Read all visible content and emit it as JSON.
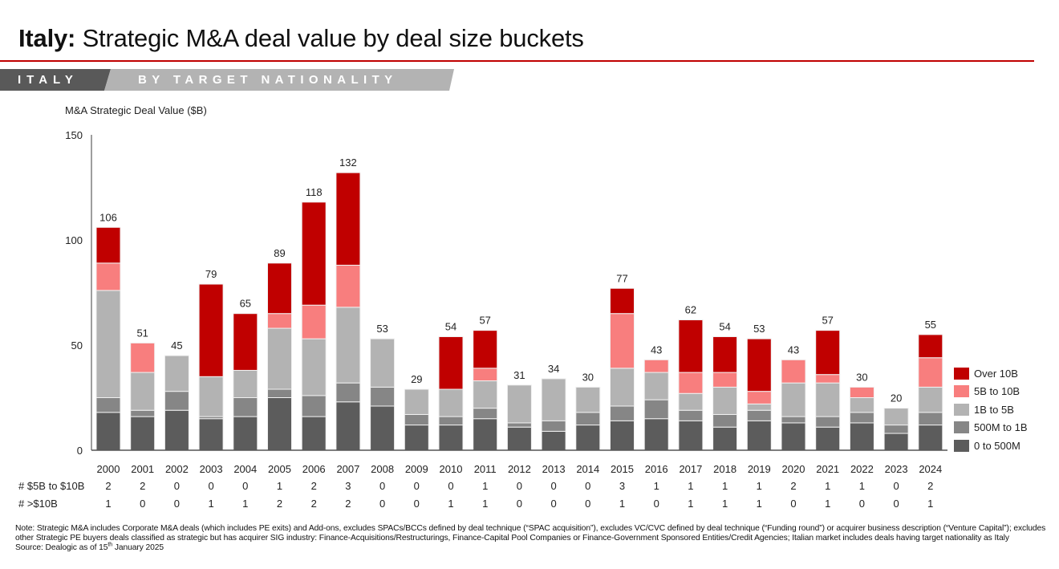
{
  "header": {
    "title_bold": "Italy:",
    "title_rest": " Strategic M&A deal value by deal size buckets",
    "banner_left": "ITALY",
    "banner_right": "BY TARGET NATIONALITY"
  },
  "colors": {
    "rule": "#c00000",
    "over_10b": "#c00000",
    "5b_to_10b": "#f87e7e",
    "1b_to_5b": "#b3b3b3",
    "500m_to_1b": "#868686",
    "0_to_500m": "#5c5c5c"
  },
  "chart_data": {
    "type": "bar",
    "stacked": true,
    "title": "Italy: Strategic M&A deal value by deal size buckets",
    "ylabel": "M&A Strategic Deal Value ($B)",
    "xlabel": "",
    "ylim": [
      0,
      150
    ],
    "yticks": [
      0,
      50,
      100,
      150
    ],
    "grid": false,
    "legend_position": "right",
    "categories": [
      "2000",
      "2001",
      "2002",
      "2003",
      "2004",
      "2005",
      "2006",
      "2007",
      "2008",
      "2009",
      "2010",
      "2011",
      "2012",
      "2013",
      "2014",
      "2015",
      "2016",
      "2017",
      "2018",
      "2019",
      "2020",
      "2021",
      "2022",
      "2023",
      "2024"
    ],
    "series": [
      {
        "name": "0 to 500M",
        "color": "#5c5c5c",
        "values": [
          18,
          16,
          19,
          15,
          16,
          25,
          16,
          23,
          21,
          12,
          12,
          15,
          11,
          9,
          12,
          14,
          15,
          14,
          11,
          14,
          13,
          11,
          13,
          8,
          12
        ]
      },
      {
        "name": "500M to 1B",
        "color": "#868686",
        "values": [
          7,
          3,
          9,
          1,
          9,
          4,
          10,
          9,
          9,
          5,
          4,
          5,
          2,
          5,
          6,
          7,
          9,
          5,
          6,
          5,
          3,
          5,
          5,
          4,
          6
        ]
      },
      {
        "name": "1B to 5B",
        "color": "#b3b3b3",
        "values": [
          51,
          18,
          17,
          19,
          13,
          29,
          27,
          36,
          23,
          12,
          13,
          13,
          18,
          20,
          12,
          18,
          13,
          8,
          13,
          3,
          16,
          16,
          7,
          8,
          12
        ]
      },
      {
        "name": "5B to 10B",
        "color": "#f87e7e",
        "values": [
          13,
          14,
          0,
          0,
          0,
          7,
          16,
          20,
          0,
          0,
          0,
          6,
          0,
          0,
          0,
          26,
          6,
          10,
          7,
          6,
          11,
          4,
          5,
          0,
          14
        ]
      },
      {
        "name": "Over 10B",
        "color": "#c00000",
        "values": [
          17,
          0,
          0,
          44,
          27,
          24,
          49,
          44,
          0,
          0,
          25,
          18,
          0,
          0,
          0,
          12,
          0,
          25,
          17,
          25,
          0,
          21,
          0,
          0,
          11
        ]
      }
    ],
    "totals": [
      106,
      51,
      45,
      79,
      65,
      89,
      118,
      132,
      53,
      29,
      54,
      57,
      31,
      34,
      30,
      77,
      43,
      62,
      54,
      53,
      43,
      57,
      30,
      20,
      55
    ],
    "legend": [
      "Over 10B",
      "5B to 10B",
      "1B to 5B",
      "500M to 1B",
      "0 to 500M"
    ]
  },
  "table": {
    "rows": [
      {
        "label": "# $5B to $10B",
        "values": [
          "2",
          "2",
          "0",
          "0",
          "0",
          "1",
          "2",
          "3",
          "0",
          "0",
          "0",
          "1",
          "0",
          "0",
          "0",
          "3",
          "1",
          "1",
          "1",
          "1",
          "2",
          "1",
          "1",
          "0",
          "2"
        ]
      },
      {
        "label": "# >$10B",
        "values": [
          "1",
          "0",
          "0",
          "1",
          "1",
          "2",
          "2",
          "2",
          "0",
          "0",
          "1",
          "1",
          "0",
          "0",
          "0",
          "1",
          "0",
          "1",
          "1",
          "1",
          "0",
          "1",
          "0",
          "0",
          "1"
        ]
      }
    ]
  },
  "footer": {
    "note": "Note: Strategic M&A includes Corporate M&A deals (which includes PE exits) and Add-ons, excludes SPACs/BCCs defined by deal technique (“SPAC acquisition”), excludes VC/CVC defined by deal technique (“Funding round”) or acquirer business description (“Venture Capital”); excludes other Strategic PE buyers deals classified as strategic but has acquirer SIG industry: Finance-Acquisitions/Restructurings, Finance-Capital Pool Companies or Finance-Government Sponsored Entities/Credit Agencies; Italian market includes deals having target nationality as Italy",
    "source_prefix": "Source: Dealogic as of 15",
    "source_sup": "th",
    "source_suffix": " January 2025"
  }
}
